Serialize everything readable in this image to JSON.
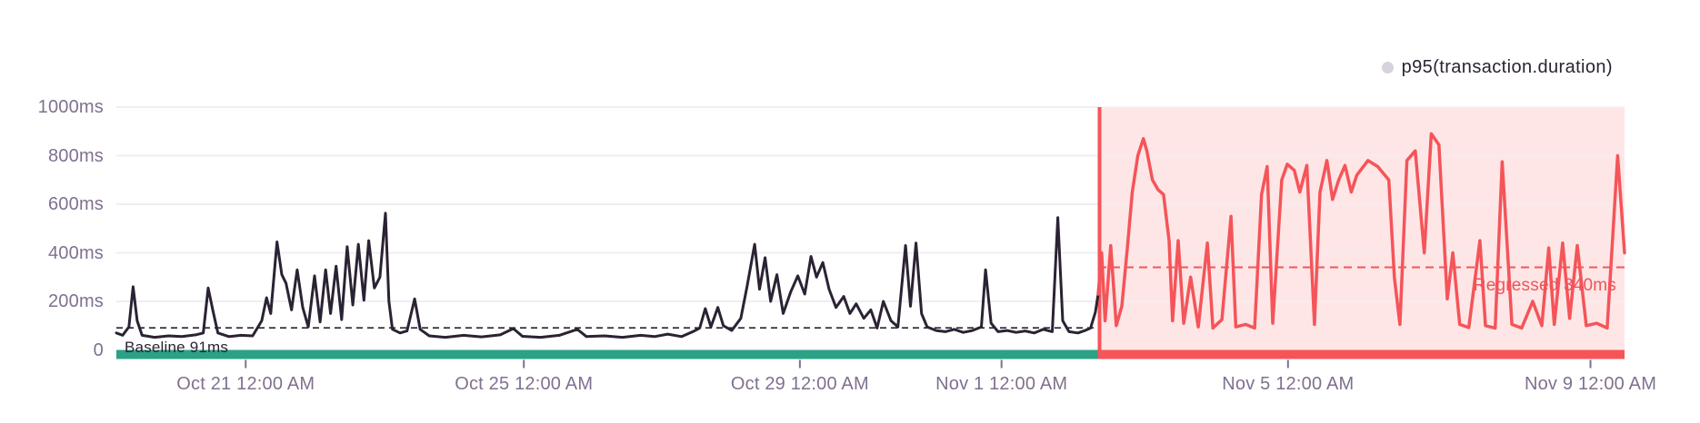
{
  "legend": {
    "series_label": "p95(transaction.duration)",
    "marker_color": "#d8d2dd"
  },
  "annotations": {
    "baseline_label": "Baseline 91ms",
    "regressed_label": "Regressed 340ms"
  },
  "colors": {
    "baseline_line": "#2b2233",
    "regressed_line": "#f55459",
    "regression_fill": "rgba(245,84,89,0.15)",
    "baseline_bar": "#2ba185",
    "regression_bar": "#f55459",
    "axis_text": "#80708f",
    "gridline": "#f0edf4",
    "tick": "#80708f"
  },
  "chart_data": {
    "type": "line",
    "title": "",
    "legend_position": "top-right",
    "grid": true,
    "ylim": [
      0,
      1000
    ],
    "y_ticks": [
      {
        "label": "1000ms",
        "value": 1000
      },
      {
        "label": "800ms",
        "value": 800
      },
      {
        "label": "600ms",
        "value": 600
      },
      {
        "label": "400ms",
        "value": 400
      },
      {
        "label": "200ms",
        "value": 200
      },
      {
        "label": "0",
        "value": 0
      }
    ],
    "x_range_days": [
      0,
      21.69
    ],
    "x_ticks": [
      {
        "label": "Oct 21 12:00 AM",
        "t": 1.86
      },
      {
        "label": "Oct 25 12:00 AM",
        "t": 5.86
      },
      {
        "label": "Oct 29 12:00 AM",
        "t": 9.83
      },
      {
        "label": "Nov 1 12:00 AM",
        "t": 12.73
      },
      {
        "label": "Nov 5 12:00 AM",
        "t": 16.85
      },
      {
        "label": "Nov 9 12:00 AM",
        "t": 21.2
      }
    ],
    "baseline": {
      "value_ms": 91,
      "label": "Baseline 91ms",
      "span_t": [
        0,
        14.12
      ]
    },
    "regression": {
      "value_ms": 340,
      "label": "Regressed 340ms",
      "span_t": [
        14.12,
        21.69
      ]
    },
    "series": [
      {
        "name": "p95(transaction.duration) — baseline period",
        "color": "#2b2233",
        "points": [
          [
            0,
            70
          ],
          [
            0.09,
            60
          ],
          [
            0.18,
            95
          ],
          [
            0.24,
            260
          ],
          [
            0.3,
            120
          ],
          [
            0.37,
            60
          ],
          [
            0.55,
            52
          ],
          [
            0.75,
            58
          ],
          [
            0.94,
            55
          ],
          [
            1.14,
            62
          ],
          [
            1.25,
            70
          ],
          [
            1.32,
            255
          ],
          [
            1.39,
            160
          ],
          [
            1.46,
            70
          ],
          [
            1.62,
            55
          ],
          [
            1.79,
            60
          ],
          [
            1.96,
            58
          ],
          [
            2.09,
            120
          ],
          [
            2.16,
            215
          ],
          [
            2.22,
            150
          ],
          [
            2.31,
            445
          ],
          [
            2.38,
            310
          ],
          [
            2.44,
            275
          ],
          [
            2.52,
            165
          ],
          [
            2.6,
            330
          ],
          [
            2.68,
            175
          ],
          [
            2.76,
            95
          ],
          [
            2.85,
            305
          ],
          [
            2.93,
            115
          ],
          [
            3.01,
            330
          ],
          [
            3.08,
            150
          ],
          [
            3.16,
            345
          ],
          [
            3.24,
            125
          ],
          [
            3.32,
            425
          ],
          [
            3.4,
            185
          ],
          [
            3.48,
            435
          ],
          [
            3.56,
            205
          ],
          [
            3.63,
            450
          ],
          [
            3.71,
            255
          ],
          [
            3.79,
            300
          ],
          [
            3.87,
            563
          ],
          [
            3.92,
            200
          ],
          [
            3.97,
            85
          ],
          [
            4.08,
            70
          ],
          [
            4.18,
            78
          ],
          [
            4.29,
            210
          ],
          [
            4.37,
            85
          ],
          [
            4.5,
            58
          ],
          [
            4.73,
            52
          ],
          [
            4.99,
            60
          ],
          [
            5.25,
            54
          ],
          [
            5.52,
            62
          ],
          [
            5.71,
            88
          ],
          [
            5.84,
            56
          ],
          [
            6.1,
            52
          ],
          [
            6.37,
            60
          ],
          [
            6.63,
            85
          ],
          [
            6.76,
            55
          ],
          [
            7.02,
            58
          ],
          [
            7.28,
            52
          ],
          [
            7.54,
            60
          ],
          [
            7.74,
            55
          ],
          [
            7.93,
            65
          ],
          [
            8.13,
            55
          ],
          [
            8.29,
            75
          ],
          [
            8.39,
            90
          ],
          [
            8.47,
            170
          ],
          [
            8.55,
            95
          ],
          [
            8.65,
            175
          ],
          [
            8.73,
            100
          ],
          [
            8.85,
            80
          ],
          [
            8.98,
            130
          ],
          [
            9.07,
            260
          ],
          [
            9.18,
            435
          ],
          [
            9.25,
            250
          ],
          [
            9.33,
            380
          ],
          [
            9.41,
            200
          ],
          [
            9.5,
            310
          ],
          [
            9.59,
            150
          ],
          [
            9.7,
            240
          ],
          [
            9.8,
            305
          ],
          [
            9.9,
            230
          ],
          [
            9.99,
            385
          ],
          [
            10.07,
            300
          ],
          [
            10.16,
            360
          ],
          [
            10.25,
            250
          ],
          [
            10.35,
            175
          ],
          [
            10.46,
            220
          ],
          [
            10.55,
            150
          ],
          [
            10.64,
            190
          ],
          [
            10.75,
            130
          ],
          [
            10.85,
            165
          ],
          [
            10.94,
            90
          ],
          [
            11.03,
            200
          ],
          [
            11.14,
            120
          ],
          [
            11.24,
            95
          ],
          [
            11.35,
            430
          ],
          [
            11.42,
            180
          ],
          [
            11.5,
            440
          ],
          [
            11.58,
            150
          ],
          [
            11.66,
            95
          ],
          [
            11.79,
            80
          ],
          [
            11.92,
            75
          ],
          [
            12.05,
            85
          ],
          [
            12.18,
            72
          ],
          [
            12.31,
            80
          ],
          [
            12.44,
            95
          ],
          [
            12.5,
            330
          ],
          [
            12.58,
            110
          ],
          [
            12.68,
            75
          ],
          [
            12.81,
            80
          ],
          [
            12.94,
            72
          ],
          [
            13.07,
            78
          ],
          [
            13.2,
            70
          ],
          [
            13.33,
            85
          ],
          [
            13.46,
            75
          ],
          [
            13.54,
            545
          ],
          [
            13.61,
            120
          ],
          [
            13.7,
            75
          ],
          [
            13.83,
            70
          ],
          [
            13.93,
            80
          ],
          [
            14.01,
            90
          ],
          [
            14.08,
            155
          ],
          [
            14.12,
            230
          ]
        ]
      },
      {
        "name": "p95(transaction.duration) — regressed period",
        "color": "#f55459",
        "points": [
          [
            14.12,
            230
          ],
          [
            14.17,
            400
          ],
          [
            14.22,
            120
          ],
          [
            14.3,
            430
          ],
          [
            14.38,
            100
          ],
          [
            14.46,
            180
          ],
          [
            14.54,
            420
          ],
          [
            14.61,
            650
          ],
          [
            14.69,
            800
          ],
          [
            14.77,
            870
          ],
          [
            14.82,
            820
          ],
          [
            14.9,
            700
          ],
          [
            14.98,
            660
          ],
          [
            15.06,
            640
          ],
          [
            15.14,
            450
          ],
          [
            15.19,
            120
          ],
          [
            15.27,
            450
          ],
          [
            15.35,
            110
          ],
          [
            15.45,
            300
          ],
          [
            15.56,
            95
          ],
          [
            15.69,
            440
          ],
          [
            15.77,
            90
          ],
          [
            15.9,
            125
          ],
          [
            16.03,
            550
          ],
          [
            16.1,
            95
          ],
          [
            16.24,
            105
          ],
          [
            16.37,
            90
          ],
          [
            16.47,
            640
          ],
          [
            16.55,
            755
          ],
          [
            16.63,
            110
          ],
          [
            16.76,
            700
          ],
          [
            16.84,
            765
          ],
          [
            16.94,
            740
          ],
          [
            17.02,
            650
          ],
          [
            17.12,
            760
          ],
          [
            17.23,
            105
          ],
          [
            17.31,
            650
          ],
          [
            17.41,
            780
          ],
          [
            17.49,
            620
          ],
          [
            17.58,
            700
          ],
          [
            17.67,
            760
          ],
          [
            17.76,
            650
          ],
          [
            17.84,
            720
          ],
          [
            18,
            780
          ],
          [
            18.14,
            755
          ],
          [
            18.3,
            700
          ],
          [
            18.38,
            300
          ],
          [
            18.46,
            105
          ],
          [
            18.56,
            780
          ],
          [
            18.68,
            820
          ],
          [
            18.81,
            400
          ],
          [
            18.91,
            890
          ],
          [
            19.02,
            845
          ],
          [
            19.14,
            210
          ],
          [
            19.22,
            400
          ],
          [
            19.32,
            105
          ],
          [
            19.45,
            92
          ],
          [
            19.61,
            450
          ],
          [
            19.69,
            100
          ],
          [
            19.83,
            90
          ],
          [
            19.93,
            775
          ],
          [
            20.07,
            105
          ],
          [
            20.21,
            90
          ],
          [
            20.37,
            200
          ],
          [
            20.5,
            100
          ],
          [
            20.6,
            420
          ],
          [
            20.68,
            105
          ],
          [
            20.8,
            440
          ],
          [
            20.9,
            130
          ],
          [
            21.01,
            430
          ],
          [
            21.14,
            100
          ],
          [
            21.29,
            110
          ],
          [
            21.44,
            90
          ],
          [
            21.59,
            800
          ],
          [
            21.69,
            400
          ]
        ]
      }
    ]
  }
}
